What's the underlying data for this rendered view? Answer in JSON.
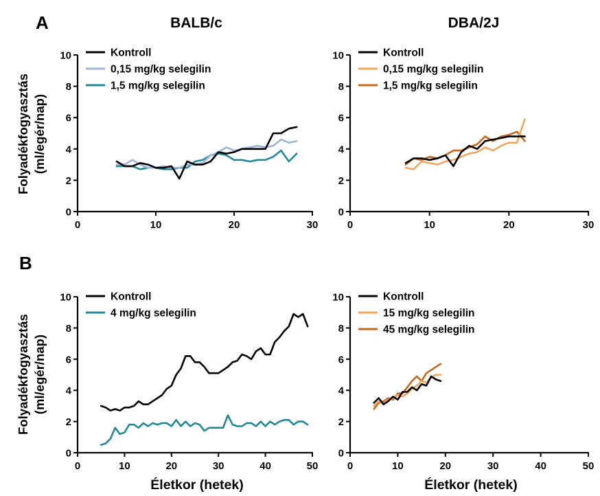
{
  "panel_labels": [
    "A",
    "B"
  ],
  "strain_titles": [
    "BALB/c",
    "DBA/2J"
  ],
  "ylabel_line1": "Folyadékfogyasztás",
  "ylabel_line2": "(ml/egér/nap)",
  "xlabel": "Életkor (hetek)",
  "colors": {
    "kontroll": "#000000",
    "balbc_low": "#9fb4d6",
    "balbc_high": "#1f8a96",
    "dba_low": "#f4a65b",
    "dba_high": "#c9671a"
  },
  "chart_data": [
    {
      "type": "line",
      "strain": "BALB/c",
      "xlim": [
        0,
        30
      ],
      "ylim": [
        0,
        10
      ],
      "xticks": [
        0,
        10,
        20,
        30
      ],
      "yticks": [
        0,
        2,
        4,
        6,
        8,
        10
      ],
      "legend": "top-left",
      "grid": false,
      "series": [
        {
          "name": "Kontroll",
          "color": "#000000",
          "x": [
            5,
            6,
            7,
            8,
            9,
            10,
            11,
            12,
            13,
            14,
            15,
            16,
            17,
            18,
            19,
            20,
            21,
            22,
            23,
            24,
            25,
            26,
            27,
            28
          ],
          "y": [
            3.2,
            2.9,
            2.9,
            3.1,
            3.0,
            2.8,
            2.8,
            2.9,
            2.1,
            3.2,
            3.0,
            3.0,
            3.2,
            3.8,
            3.7,
            3.8,
            4.0,
            4.0,
            4.0,
            4.0,
            5.0,
            5.0,
            5.3,
            5.4
          ]
        },
        {
          "name": "0,15 mg/kg selegilin",
          "color": "#9fb4d6",
          "x": [
            5,
            6,
            7,
            8,
            9,
            10,
            11,
            12,
            13,
            14,
            15,
            16,
            17,
            18,
            19,
            20,
            21,
            22,
            23,
            24,
            25,
            26,
            27,
            28
          ],
          "y": [
            3.0,
            3.0,
            3.3,
            3.0,
            2.8,
            2.8,
            2.9,
            2.8,
            2.8,
            3.0,
            3.0,
            3.1,
            3.6,
            3.8,
            4.1,
            3.9,
            4.0,
            4.1,
            4.2,
            4.1,
            4.2,
            4.6,
            4.4,
            4.5
          ]
        },
        {
          "name": "1,5 mg/kg selegilin",
          "color": "#1f8a96",
          "x": [
            5,
            6,
            7,
            8,
            9,
            10,
            11,
            12,
            13,
            14,
            15,
            16,
            17,
            18,
            19,
            20,
            21,
            22,
            23,
            24,
            25,
            26,
            27,
            28
          ],
          "y": [
            2.9,
            2.9,
            2.9,
            2.7,
            2.8,
            2.8,
            2.7,
            2.7,
            2.8,
            2.8,
            3.2,
            3.3,
            3.6,
            3.7,
            3.6,
            3.3,
            3.3,
            3.2,
            3.3,
            3.3,
            3.5,
            3.9,
            3.2,
            3.7
          ]
        }
      ]
    },
    {
      "type": "line",
      "strain": "DBA/2J",
      "xlim": [
        0,
        30
      ],
      "ylim": [
        0,
        10
      ],
      "xticks": [
        0,
        10,
        20,
        30
      ],
      "yticks": [
        0,
        2,
        4,
        6,
        8,
        10
      ],
      "legend": "top-left",
      "grid": false,
      "series": [
        {
          "name": "Kontroll",
          "color": "#000000",
          "x": [
            7,
            8,
            9,
            10,
            11,
            12,
            13,
            14,
            15,
            16,
            17,
            18,
            19,
            20,
            21,
            22
          ],
          "y": [
            3.1,
            3.4,
            3.4,
            3.3,
            3.4,
            3.6,
            2.9,
            3.8,
            4.2,
            4.0,
            4.5,
            4.6,
            4.7,
            4.8,
            4.8,
            4.8
          ]
        },
        {
          "name": "0,15 mg/kg selegilin",
          "color": "#f4a65b",
          "x": [
            7,
            8,
            9,
            10,
            11,
            12,
            13,
            14,
            15,
            16,
            17,
            18,
            19,
            20,
            21,
            22
          ],
          "y": [
            2.8,
            2.7,
            3.2,
            3.1,
            3.0,
            3.2,
            3.3,
            3.5,
            3.7,
            3.8,
            4.1,
            3.9,
            4.2,
            4.4,
            4.4,
            5.9
          ]
        },
        {
          "name": "1,5 mg/kg selegilin",
          "color": "#c9671a",
          "x": [
            7,
            8,
            9,
            10,
            11,
            12,
            13,
            14,
            15,
            16,
            17,
            18,
            19,
            20,
            21,
            22
          ],
          "y": [
            3.0,
            3.4,
            3.3,
            3.5,
            3.4,
            3.6,
            3.9,
            3.9,
            4.1,
            4.3,
            4.8,
            4.5,
            4.8,
            4.9,
            5.1,
            4.5
          ]
        }
      ]
    },
    {
      "type": "line",
      "strain": "BALB/c",
      "xlim": [
        0,
        50
      ],
      "ylim": [
        0,
        10
      ],
      "xticks": [
        0,
        10,
        20,
        30,
        40,
        50
      ],
      "yticks": [
        0,
        2,
        4,
        6,
        8,
        10
      ],
      "legend": "top-left",
      "grid": false,
      "series": [
        {
          "name": "Kontroll",
          "color": "#000000",
          "x": [
            5,
            6,
            7,
            8,
            9,
            10,
            11,
            12,
            13,
            14,
            15,
            16,
            17,
            18,
            19,
            20,
            21,
            22,
            23,
            24,
            25,
            26,
            27,
            28,
            29,
            30,
            31,
            32,
            33,
            34,
            35,
            36,
            37,
            38,
            39,
            40,
            41,
            42,
            43,
            44,
            45,
            46,
            47,
            48,
            49
          ],
          "y": [
            3.0,
            2.9,
            2.7,
            2.8,
            2.7,
            2.9,
            2.9,
            3.0,
            3.3,
            3.1,
            3.1,
            3.3,
            3.5,
            3.7,
            4.1,
            4.3,
            5.0,
            5.4,
            6.2,
            6.2,
            5.8,
            5.8,
            5.5,
            5.1,
            5.1,
            5.1,
            5.3,
            5.5,
            5.8,
            5.9,
            6.3,
            6.2,
            6.0,
            6.5,
            6.7,
            6.3,
            6.3,
            7.1,
            7.4,
            7.8,
            8.1,
            8.9,
            8.7,
            8.9,
            8.1
          ]
        },
        {
          "name": "4 mg/kg selegilin",
          "color": "#1f8a96",
          "x": [
            5,
            6,
            7,
            8,
            9,
            10,
            11,
            12,
            13,
            14,
            15,
            16,
            17,
            18,
            19,
            20,
            21,
            22,
            23,
            24,
            25,
            26,
            27,
            28,
            29,
            30,
            31,
            32,
            33,
            34,
            35,
            36,
            37,
            38,
            39,
            40,
            41,
            42,
            43,
            44,
            45,
            46,
            47,
            48,
            49
          ],
          "y": [
            0.5,
            0.6,
            0.9,
            1.6,
            1.2,
            1.3,
            1.8,
            1.8,
            1.6,
            1.9,
            1.7,
            1.9,
            1.8,
            1.9,
            1.9,
            1.7,
            2.1,
            1.7,
            2.0,
            1.7,
            1.9,
            1.8,
            1.4,
            1.6,
            1.6,
            1.6,
            1.6,
            2.4,
            1.8,
            1.7,
            1.7,
            1.9,
            1.9,
            1.7,
            2.0,
            1.7,
            2.0,
            1.8,
            2.0,
            2.1,
            2.1,
            1.8,
            2.0,
            2.0,
            1.8
          ]
        }
      ]
    },
    {
      "type": "line",
      "strain": "DBA/2J",
      "xlim": [
        0,
        50
      ],
      "ylim": [
        0,
        10
      ],
      "xticks": [
        0,
        10,
        20,
        30,
        40,
        50
      ],
      "yticks": [
        0,
        2,
        4,
        6,
        8,
        10
      ],
      "legend": "top-left",
      "grid": false,
      "series": [
        {
          "name": "Kontroll",
          "color": "#000000",
          "x": [
            5,
            6,
            7,
            8,
            9,
            10,
            11,
            12,
            13,
            14,
            15,
            16,
            17,
            18,
            19
          ],
          "y": [
            3.2,
            3.5,
            3.1,
            3.3,
            3.6,
            3.4,
            3.9,
            3.9,
            4.2,
            4.0,
            4.4,
            4.3,
            4.9,
            4.7,
            4.6
          ]
        },
        {
          "name": "15 mg/kg selegilin",
          "color": "#f4a65b",
          "x": [
            5,
            6,
            7,
            8,
            9,
            10,
            11,
            12,
            13,
            14,
            15,
            16,
            17,
            18,
            19
          ],
          "y": [
            3.0,
            3.3,
            3.2,
            3.4,
            3.5,
            3.7,
            3.6,
            3.8,
            4.1,
            4.3,
            4.6,
            4.5,
            4.8,
            5.0,
            5.0
          ]
        },
        {
          "name": "45 mg/kg selegilin",
          "color": "#c9671a",
          "x": [
            5,
            6,
            7,
            8,
            9,
            10,
            11,
            12,
            13,
            14,
            15,
            16,
            17,
            18,
            19
          ],
          "y": [
            2.8,
            3.2,
            3.3,
            3.5,
            3.4,
            3.8,
            3.8,
            4.2,
            4.6,
            4.9,
            4.6,
            5.1,
            5.3,
            5.5,
            5.7
          ]
        }
      ]
    }
  ]
}
